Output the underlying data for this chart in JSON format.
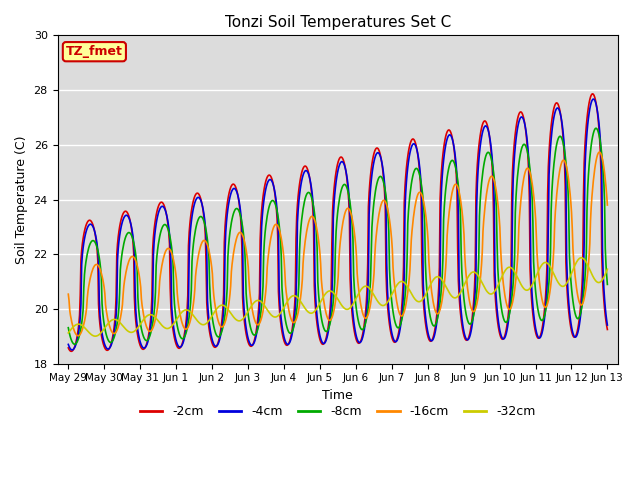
{
  "title": "Tonzi Soil Temperatures Set C",
  "xlabel": "Time",
  "ylabel": "Soil Temperature (C)",
  "ylim": [
    18,
    30
  ],
  "yticks": [
    18,
    20,
    22,
    24,
    26,
    28,
    30
  ],
  "bg_color": "#dcdcdc",
  "fig_color": "#ffffff",
  "annotation_text": "TZ_fmet",
  "annotation_color": "#cc0000",
  "annotation_bg": "#ffff99",
  "annotation_border": "#cc0000",
  "lines": {
    "-2cm": {
      "color": "#dd0000",
      "lw": 1.2
    },
    "-4cm": {
      "color": "#0000dd",
      "lw": 1.2
    },
    "-8cm": {
      "color": "#00aa00",
      "lw": 1.2
    },
    "-16cm": {
      "color": "#ff8800",
      "lw": 1.2
    },
    "-32cm": {
      "color": "#cccc00",
      "lw": 1.2
    }
  },
  "legend_labels": [
    "-2cm",
    "-4cm",
    "-8cm",
    "-16cm",
    "-32cm"
  ],
  "xtick_labels": [
    "May 29",
    "May 30",
    "May 31",
    "Jun 1",
    "Jun 2",
    "Jun 3",
    "Jun 4",
    "Jun 5",
    "Jun 6",
    "Jun 7",
    "Jun 8",
    "Jun 9",
    "Jun 10",
    "Jun 11",
    "Jun 12",
    "Jun 13"
  ],
  "n_days": 16,
  "pts_per_day": 48
}
